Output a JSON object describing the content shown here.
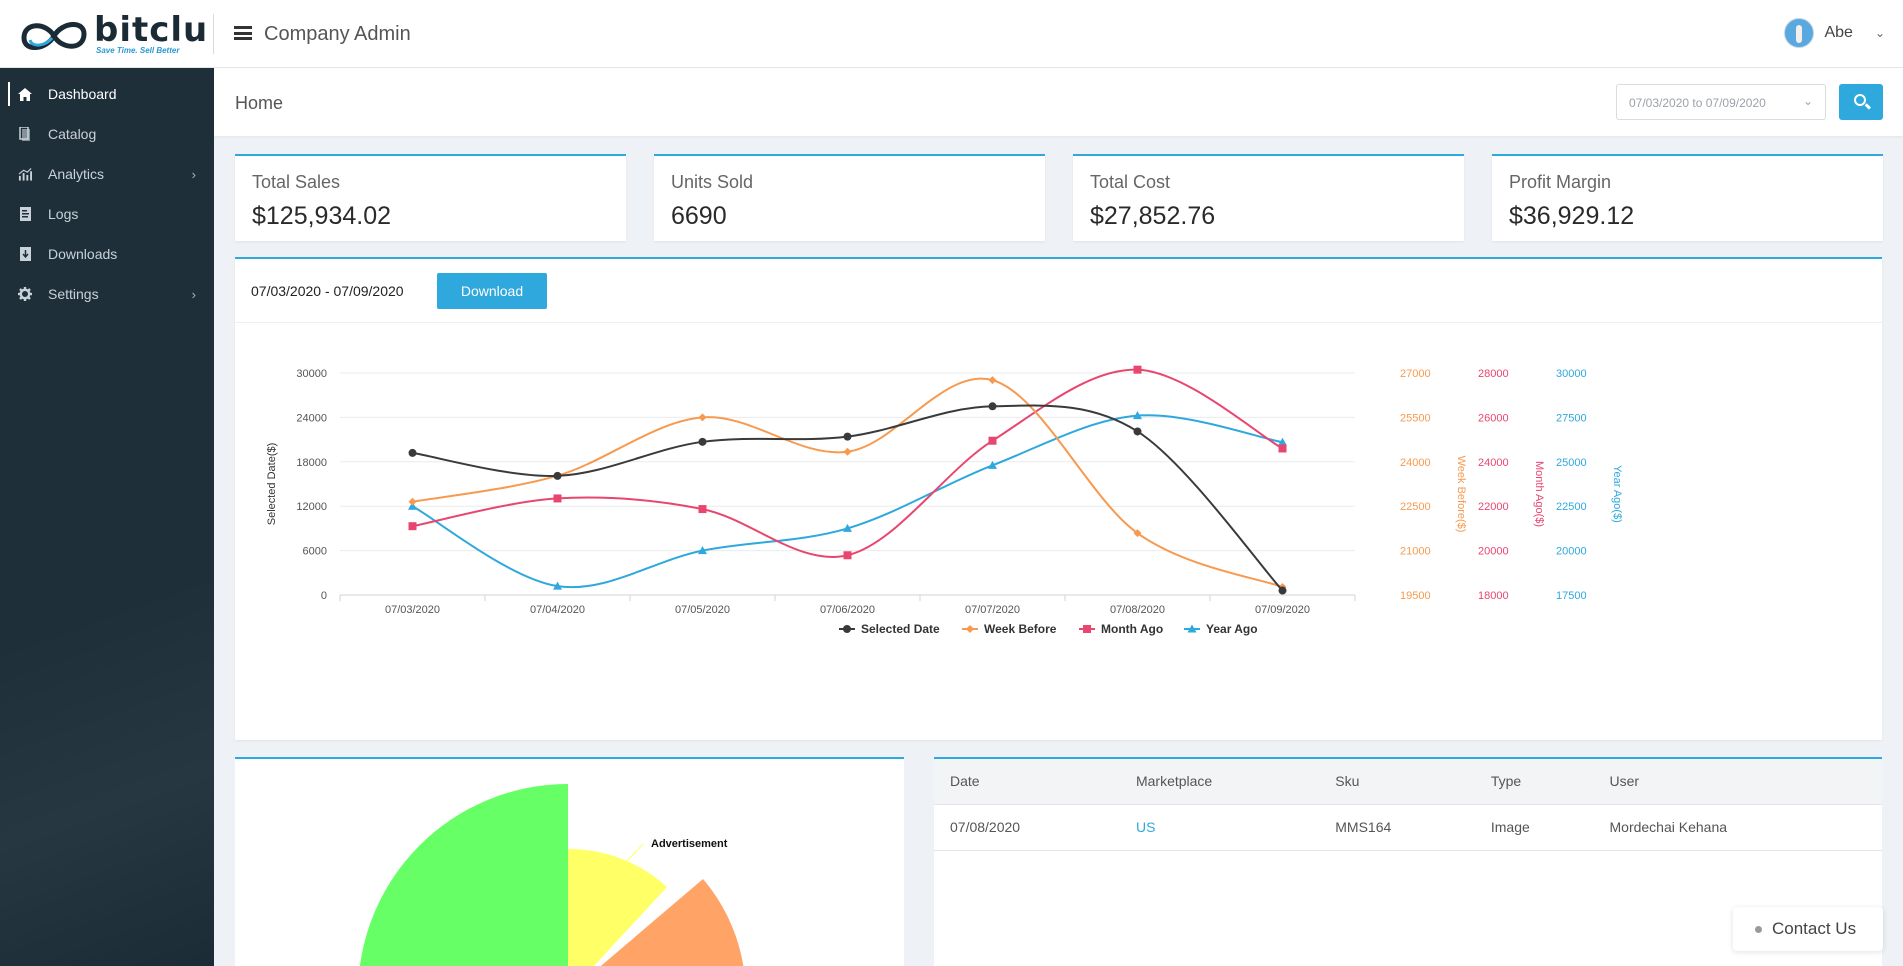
{
  "brand": {
    "wordmark": "bitclu",
    "tagline": "Save Time. Sell Better"
  },
  "header": {
    "app_title": "Company Admin",
    "user_name": "Abe"
  },
  "sidebar": {
    "items": [
      {
        "label": "Dashboard",
        "icon": "home-icon",
        "active": true
      },
      {
        "label": "Catalog",
        "icon": "catalog-icon"
      },
      {
        "label": "Analytics",
        "icon": "analytics-icon",
        "has_submenu": true
      },
      {
        "label": "Logs",
        "icon": "logs-icon"
      },
      {
        "label": "Downloads",
        "icon": "downloads-icon"
      },
      {
        "label": "Settings",
        "icon": "gear-icon",
        "has_submenu": true
      }
    ]
  },
  "breadcrumb": {
    "home": "Home",
    "date_range": "07/03/2020 to 07/09/2020"
  },
  "stats": [
    {
      "label": "Total Sales",
      "value": "$125,934.02"
    },
    {
      "label": "Units Sold",
      "value": "6690"
    },
    {
      "label": "Total Cost",
      "value": "$27,852.76"
    },
    {
      "label": "Profit Margin",
      "value": "$36,929.12"
    }
  ],
  "chart_panel": {
    "range": "07/03/2020 - 07/09/2020",
    "download_label": "Download"
  },
  "chart_data": {
    "type": "line",
    "categories": [
      "07/03/2020",
      "07/04/2020",
      "07/05/2020",
      "07/06/2020",
      "07/07/2020",
      "07/08/2020",
      "07/09/2020"
    ],
    "axes": [
      {
        "label": "Selected Date($)",
        "min": 0,
        "max": 30000,
        "ticks": [
          "0",
          "6000",
          "12000",
          "18000",
          "24000",
          "30000"
        ],
        "color": "#555555",
        "side": "left"
      },
      {
        "label": "Week Before($)",
        "min": 19500,
        "max": 27000,
        "ticks": [
          "19500",
          "21000",
          "22500",
          "24000",
          "25500",
          "27000"
        ],
        "color": "#f79a4f",
        "side": "right"
      },
      {
        "label": "Month Ago($)",
        "min": 18000,
        "max": 28000,
        "ticks": [
          "18000",
          "20000",
          "22000",
          "24000",
          "26000",
          "28000"
        ],
        "color": "#e8466f",
        "side": "right"
      },
      {
        "label": "Year Ago($)",
        "min": 17500,
        "max": 30000,
        "ticks": [
          "17500",
          "20000",
          "22500",
          "25000",
          "27500",
          "30000"
        ],
        "color": "#2fa8dd",
        "side": "right"
      }
    ],
    "series": [
      {
        "name": "Selected Date",
        "axis": 0,
        "color": "#3a3a3a",
        "marker": "circle",
        "values": [
          19200,
          16100,
          20700,
          21400,
          25500,
          22100,
          600
        ]
      },
      {
        "name": "Week Before",
        "axis": 1,
        "color": "#f79a4f",
        "marker": "diamond",
        "values": [
          22650,
          23530,
          25500,
          24340,
          26760,
          21590,
          19770
        ]
      },
      {
        "name": "Month Ago",
        "axis": 2,
        "color": "#e8466f",
        "marker": "square",
        "values": [
          21100,
          22350,
          21870,
          19790,
          24950,
          28150,
          24600
        ]
      },
      {
        "name": "Year Ago",
        "axis": 3,
        "color": "#2fa8dd",
        "marker": "triangle",
        "values": [
          22500,
          18000,
          20000,
          21250,
          24800,
          27600,
          26100
        ]
      }
    ],
    "grid": true,
    "legend": "bottom-center"
  },
  "pie": {
    "label": "Advertisement",
    "colors": [
      "#66ff66",
      "#ffff66",
      "#ffa366"
    ]
  },
  "table": {
    "columns": [
      "Date",
      "Marketplace",
      "Sku",
      "Type",
      "User"
    ],
    "rows": [
      [
        "07/08/2020",
        "US",
        "MMS164",
        "Image",
        "Mordechai Kehana"
      ]
    ]
  },
  "contact": {
    "label": "Contact Us"
  }
}
